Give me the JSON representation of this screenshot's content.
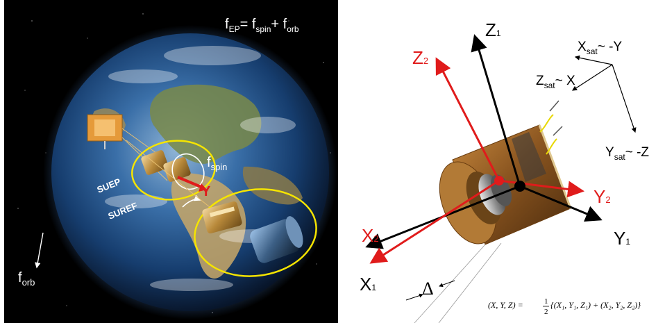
{
  "left": {
    "formula": {
      "f": "f",
      "ep": "EP",
      "eq": "= f",
      "spin": "spin",
      "plus": "+ f",
      "orb": "orb"
    },
    "f_spin": {
      "f": "f",
      "sub": "spin"
    },
    "f_orb": {
      "f": "f",
      "sub": "orb"
    },
    "suep": "SUEP",
    "suref": "SUREF",
    "y_axis": "Y"
  },
  "right": {
    "axes": {
      "z1": "Z",
      "z1_sub": "1",
      "z2": "Z",
      "z2_sub": "2",
      "x1": "X",
      "x1_sub": "1",
      "x2": "X",
      "x2_sub": "2",
      "y1": "Y",
      "y1_sub": "1",
      "y2": "Y",
      "y2_sub": "2"
    },
    "sat_frame": {
      "xsat": "X",
      "xsat_sub": "sat",
      "xsat_rel": "~ -Y",
      "zsat": "Z",
      "zsat_sub": "sat",
      "zsat_rel": "~ X",
      "ysat": "Y",
      "ysat_sub": "sat",
      "ysat_rel": "~ -Z"
    },
    "delta": "Δ",
    "equation": {
      "lhs": "(X, Y, Z) =",
      "num": "1",
      "den": "2",
      "rhs": "{(X₁, Y₁, Z₁) + (X₂, Y₂, Z₂)}"
    }
  },
  "colors": {
    "red": "#e01b1b",
    "yellow": "#f5e400",
    "black": "#000000"
  }
}
